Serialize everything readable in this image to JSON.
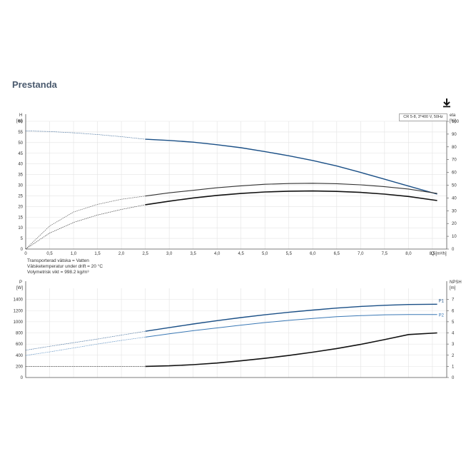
{
  "page": {
    "title": "Prestanda",
    "download_icon": "download-icon"
  },
  "fluid_info": {
    "line1": "Transporterad vätska = Vatten",
    "line2": "Vätsketemperatur under drift = 20 °C",
    "line3": "Volymetrisk vikt = 998.2 kg/m³"
  },
  "chart_data": [
    {
      "type": "line",
      "title": "",
      "legend_box": "CR 5-8, 3*400 V, 50Hz",
      "left_axis": {
        "unit_top": "H",
        "unit_bottom": "[m]",
        "ylim": [
          0,
          60
        ],
        "ticks": [
          "0",
          "5",
          "10",
          "15",
          "20",
          "25",
          "30",
          "35",
          "40",
          "45",
          "50",
          "55",
          "60"
        ]
      },
      "right_axis": {
        "unit_top": "eta",
        "unit_bottom": "[%]",
        "ylim": [
          0,
          100
        ],
        "ticks": [
          "0",
          "10",
          "20",
          "30",
          "40",
          "50",
          "60",
          "70",
          "80",
          "90",
          "100"
        ]
      },
      "x_axis": {
        "unit": "Q [m³/h]",
        "xlim": [
          0,
          8.8
        ],
        "ticks": [
          "0",
          "0,5",
          "1,0",
          "1,5",
          "2,0",
          "2,5",
          "3,0",
          "3,5",
          "4,0",
          "4,5",
          "5,0",
          "5,5",
          "6,0",
          "6,5",
          "7,0",
          "7,5",
          "8,0",
          "8,5"
        ]
      },
      "grid": true,
      "series": [
        {
          "axis": "left",
          "color": "#1a4f86",
          "width": 1.4,
          "dashed_until": 2.5,
          "x": [
            0,
            0.5,
            1.0,
            1.5,
            2.0,
            2.5,
            3.0,
            3.5,
            4.0,
            4.5,
            5.0,
            5.5,
            6.0,
            6.5,
            7.0,
            7.5,
            8.0,
            8.6
          ],
          "y": [
            55.5,
            55.2,
            54.6,
            53.8,
            52.8,
            51.6,
            51.0,
            50.2,
            49.0,
            47.6,
            45.8,
            43.8,
            41.6,
            39.0,
            36.0,
            32.8,
            29.6,
            25.8
          ]
        },
        {
          "axis": "right",
          "color": "#333333",
          "width": 1.1,
          "dashed_until": 2.5,
          "x": [
            0,
            0.5,
            1.0,
            1.5,
            2.0,
            2.5,
            3.0,
            3.5,
            4.0,
            4.5,
            5.0,
            5.5,
            6.0,
            6.5,
            7.0,
            7.5,
            8.0,
            8.6
          ],
          "y": [
            0,
            18,
            29,
            35,
            39,
            41.5,
            44,
            46,
            48,
            49.5,
            50.7,
            51.3,
            51.5,
            51.2,
            50.3,
            48.8,
            47,
            43.5
          ]
        },
        {
          "axis": "left",
          "color": "#111111",
          "width": 1.6,
          "dashed_until": 2.5,
          "x": [
            0,
            0.5,
            1.0,
            1.5,
            2.0,
            2.5,
            3.0,
            3.5,
            4.0,
            4.5,
            5.0,
            5.5,
            6.0,
            6.5,
            7.0,
            7.5,
            8.0,
            8.6
          ],
          "y": [
            0,
            7.5,
            12.5,
            16,
            18.6,
            20.8,
            22.5,
            24,
            25.2,
            26.1,
            26.8,
            27.2,
            27.3,
            27.1,
            26.6,
            25.8,
            24.7,
            22.8
          ]
        }
      ]
    },
    {
      "type": "line",
      "title": "",
      "left_axis": {
        "unit_top": "P",
        "unit_bottom": "[W]",
        "ylim": [
          0,
          1600
        ],
        "ticks": [
          "0",
          "200",
          "400",
          "600",
          "800",
          "1000",
          "1200",
          "1400"
        ]
      },
      "right_axis": {
        "unit_top": "NPSH",
        "unit_bottom": "[m]",
        "ylim": [
          0,
          8
        ],
        "ticks": [
          "0",
          "1",
          "2",
          "3",
          "4",
          "5",
          "6",
          "7"
        ]
      },
      "x_axis": {
        "xlim": [
          0,
          8.8
        ]
      },
      "grid": true,
      "series": [
        {
          "name": "P1",
          "axis": "left",
          "color": "#1a4f86",
          "width": 1.4,
          "dashed_until": 2.5,
          "x": [
            0,
            0.5,
            1.0,
            1.5,
            2.0,
            2.5,
            3.0,
            3.5,
            4.0,
            4.5,
            5.0,
            5.5,
            6.0,
            6.5,
            7.0,
            7.5,
            8.0,
            8.6
          ],
          "y": [
            490,
            560,
            625,
            690,
            760,
            830,
            895,
            960,
            1020,
            1075,
            1125,
            1170,
            1210,
            1245,
            1275,
            1295,
            1310,
            1315
          ]
        },
        {
          "name": "P2",
          "axis": "left",
          "color": "#3a78b5",
          "width": 1.0,
          "dashed_until": 2.5,
          "x": [
            0,
            0.5,
            1.0,
            1.5,
            2.0,
            2.5,
            3.0,
            3.5,
            4.0,
            4.5,
            5.0,
            5.5,
            6.0,
            6.5,
            7.0,
            7.5,
            8.0,
            8.6
          ],
          "y": [
            395,
            460,
            530,
            600,
            665,
            725,
            785,
            840,
            890,
            940,
            985,
            1025,
            1060,
            1090,
            1110,
            1125,
            1130,
            1130
          ]
        },
        {
          "axis": "right",
          "color": "#111111",
          "width": 1.6,
          "dashed_until": 2.5,
          "x": [
            0,
            0.5,
            1.0,
            1.5,
            2.0,
            2.5,
            3.0,
            3.5,
            4.0,
            4.5,
            5.0,
            5.5,
            6.0,
            6.5,
            7.0,
            7.5,
            8.0,
            8.6
          ],
          "y": [
            1.0,
            1.0,
            1.0,
            1.0,
            1.0,
            1.0,
            1.05,
            1.15,
            1.3,
            1.5,
            1.72,
            1.98,
            2.27,
            2.6,
            2.97,
            3.4,
            3.85,
            4.0
          ]
        }
      ]
    }
  ]
}
